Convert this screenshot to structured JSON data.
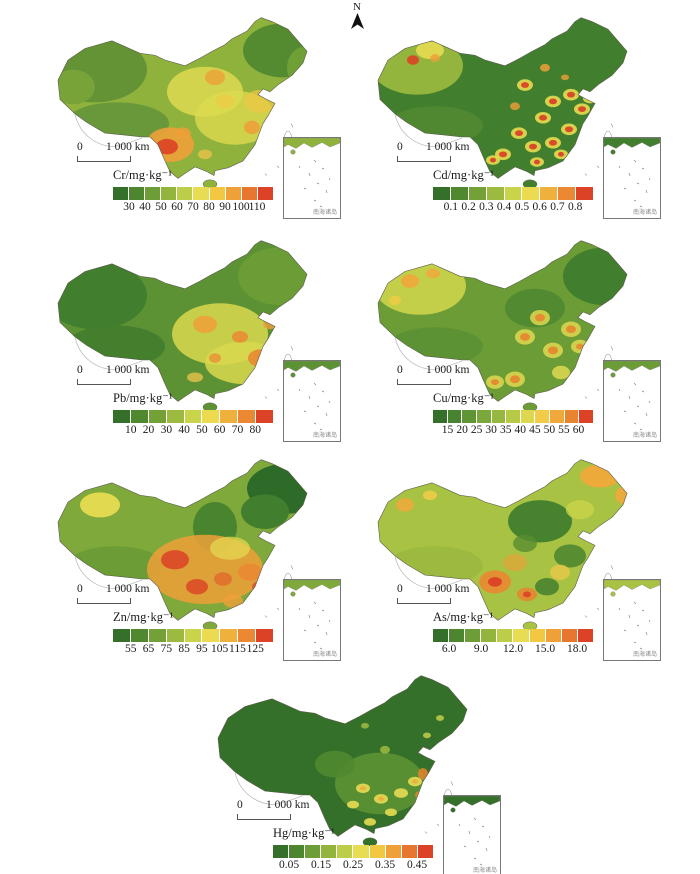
{
  "figure": {
    "north_label": "N",
    "inset_caption": "南海诸岛",
    "scalebar": {
      "zero": "0",
      "distance": "1 000 km"
    }
  },
  "panels": [
    {
      "id": "cr",
      "element": "Cr",
      "label": "Cr/mg·kg⁻¹",
      "ticks": [
        "30",
        "40",
        "50",
        "60",
        "70",
        "80",
        "90",
        "100",
        "110"
      ],
      "palette": [
        "#34702a",
        "#4d862f",
        "#6c9d36",
        "#93b53e",
        "#bcce48",
        "#e7dc52",
        "#f2c843",
        "#efa038",
        "#e7762e",
        "#db4226"
      ]
    },
    {
      "id": "cd",
      "element": "Cd",
      "label": "Cd/mg·kg⁻¹",
      "ticks": [
        "0.1",
        "0.2",
        "0.3",
        "0.4",
        "0.5",
        "0.6",
        "0.7",
        "0.8"
      ],
      "palette": [
        "#34702a",
        "#508830",
        "#73a037",
        "#9dba40",
        "#c9d44b",
        "#ecda50",
        "#f0b03d",
        "#ea8833",
        "#db4226"
      ]
    },
    {
      "id": "pb",
      "element": "Pb",
      "label": "Pb/mg·kg⁻¹",
      "ticks": [
        "10",
        "20",
        "30",
        "40",
        "50",
        "60",
        "70",
        "80"
      ],
      "palette": [
        "#34702a",
        "#508830",
        "#73a037",
        "#9dba40",
        "#c9d44b",
        "#ecda50",
        "#f0b03d",
        "#ea8833",
        "#db4226"
      ]
    },
    {
      "id": "cu",
      "element": "Cu",
      "label": "Cu/mg·kg⁻¹",
      "ticks": [
        "15",
        "20",
        "25",
        "30",
        "35",
        "40",
        "45",
        "50",
        "55",
        "60"
      ],
      "palette": [
        "#34702a",
        "#488331",
        "#609535",
        "#7aa83a",
        "#96b740",
        "#b6ca47",
        "#ddd74f",
        "#f2cc46",
        "#efa93b",
        "#e8842f",
        "#db4226"
      ]
    },
    {
      "id": "zn",
      "element": "Zn",
      "label": "Zn/mg·kg⁻¹",
      "ticks": [
        "55",
        "65",
        "75",
        "85",
        "95",
        "105",
        "115",
        "125"
      ],
      "palette": [
        "#34702a",
        "#508830",
        "#73a037",
        "#9dba40",
        "#c9d44b",
        "#ecda50",
        "#f0b03d",
        "#ea8833",
        "#db4226"
      ]
    },
    {
      "id": "as",
      "element": "As",
      "label": "As/mg·kg⁻¹",
      "ticks": [
        "6.0",
        "9.0",
        "12.0",
        "15.0",
        "18.0"
      ],
      "palette": [
        "#34702a",
        "#4d862f",
        "#6c9d36",
        "#93b53e",
        "#bcce48",
        "#e7dc52",
        "#f2c843",
        "#efa038",
        "#e7762e",
        "#db4226"
      ]
    },
    {
      "id": "hg",
      "element": "Hg",
      "label": "Hg/mg·kg⁻¹",
      "ticks": [
        "0.05",
        "0.15",
        "0.25",
        "0.35",
        "0.45"
      ],
      "palette": [
        "#34702a",
        "#4d862f",
        "#6c9d36",
        "#93b53e",
        "#bcce48",
        "#e7dc52",
        "#f2c843",
        "#efa038",
        "#e7762e",
        "#db4226"
      ]
    }
  ]
}
